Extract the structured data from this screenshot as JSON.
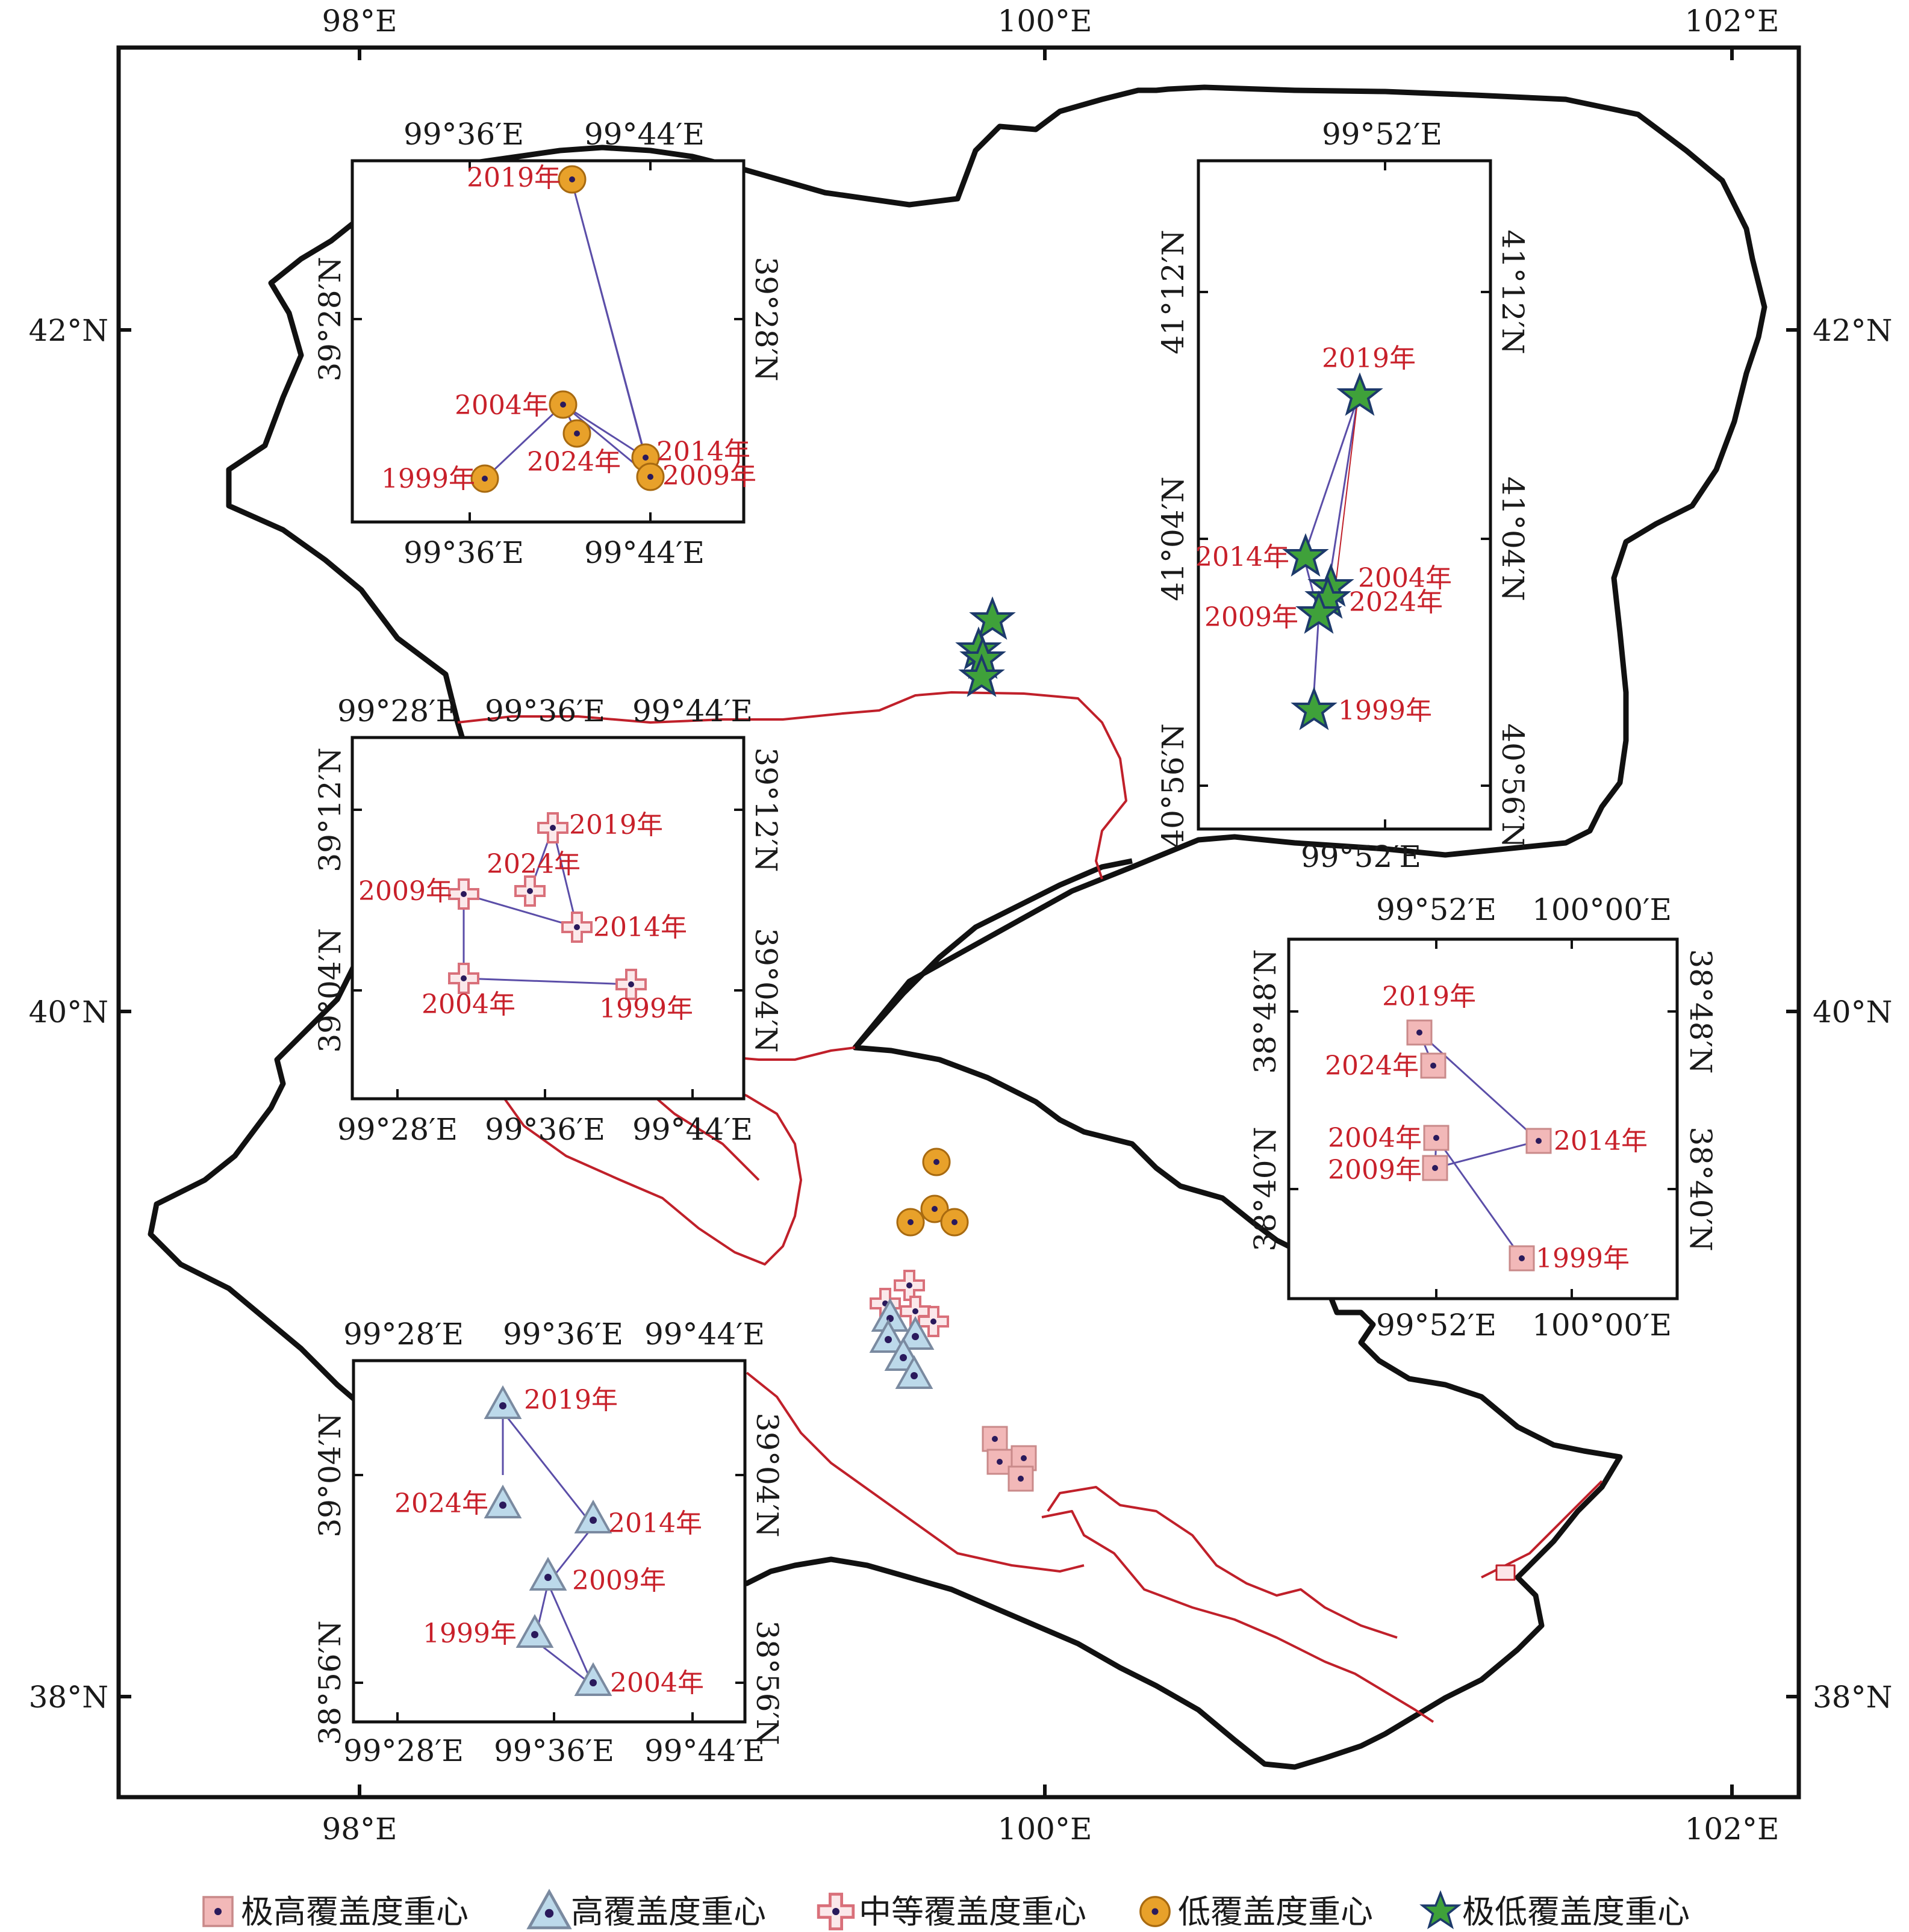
{
  "colors": {
    "frame": "#111111",
    "boundary": "#111111",
    "river": "#c0202a",
    "year_text": "#c8202a",
    "track": "#5b4ea8",
    "extreme_high_fill": "#f2b8b8",
    "high_fill": "#bcd9ea",
    "medium_stroke": "#d9707a",
    "low_fill": "#e8a12a",
    "extreme_low_fill": "#3fa13a"
  },
  "main_axes": {
    "x_ticks": [
      "98°E",
      "100°E",
      "102°E"
    ],
    "y_ticks": [
      "42°N",
      "40°N",
      "38°N"
    ]
  },
  "main_markers": {
    "extreme_low": {
      "icon": "green-star",
      "count": 4
    },
    "low": {
      "icon": "orange-circle",
      "count": 4
    },
    "medium": {
      "icon": "pink-cross",
      "count": 4
    },
    "high": {
      "icon": "blue-triangle",
      "count": 5
    },
    "extreme_high": {
      "icon": "pink-square",
      "count": 4
    }
  },
  "insets": {
    "low": {
      "x_ticks_top": [
        "99°36′E",
        "99°44′E"
      ],
      "x_ticks_bottom": [
        "99°36′E",
        "99°44′E"
      ],
      "y_ticks": [
        "39°28′N"
      ],
      "points": [
        {
          "year": "2019年"
        },
        {
          "year": "2004年"
        },
        {
          "year": "2024年"
        },
        {
          "year": "1999年"
        },
        {
          "year": "2014年"
        },
        {
          "year": "2009年"
        }
      ]
    },
    "extreme_low": {
      "x_ticks_top": [
        "99°52′E"
      ],
      "x_ticks_bottom": [
        "99°52′E"
      ],
      "y_ticks": [
        "41°12′N",
        "41°04′N",
        "40°56′N"
      ],
      "points": [
        {
          "year": "2019年"
        },
        {
          "year": "2014年"
        },
        {
          "year": "2004年"
        },
        {
          "year": "2024年"
        },
        {
          "year": "2009年"
        },
        {
          "year": "1999年"
        }
      ]
    },
    "medium": {
      "x_ticks_top": [
        "99°28′E",
        "99°36′E",
        "99°44′E"
      ],
      "x_ticks_bottom": [
        "99°28′E",
        "99°36′E",
        "99°44′E"
      ],
      "y_ticks": [
        "39°12′N",
        "39°04′N"
      ],
      "points": [
        {
          "year": "2019年"
        },
        {
          "year": "2024年"
        },
        {
          "year": "2009年"
        },
        {
          "year": "2014年"
        },
        {
          "year": "2004年"
        },
        {
          "year": "1999年"
        }
      ]
    },
    "extreme_high": {
      "x_ticks_top": [
        "99°52′E",
        "100°00′E"
      ],
      "x_ticks_bottom": [
        "99°52′E",
        "100°00′E"
      ],
      "y_ticks": [
        "38°48′N",
        "38°40′N"
      ],
      "points": [
        {
          "year": "2019年"
        },
        {
          "year": "2024年"
        },
        {
          "year": "2004年"
        },
        {
          "year": "2014年"
        },
        {
          "year": "2009年"
        },
        {
          "year": "1999年"
        }
      ]
    },
    "high": {
      "x_ticks_top": [
        "99°28′E",
        "99°36′E",
        "99°44′E"
      ],
      "x_ticks_bottom": [
        "99°28′E",
        "99°36′E",
        "99°44′E"
      ],
      "y_ticks": [
        "39°04′N",
        "38°56′N"
      ],
      "points": [
        {
          "year": "2019年"
        },
        {
          "year": "2024年"
        },
        {
          "year": "2014年"
        },
        {
          "year": "2009年"
        },
        {
          "year": "1999年"
        },
        {
          "year": "2004年"
        }
      ]
    }
  },
  "legend": [
    {
      "icon": "pink-square-icon",
      "label": "极高覆盖度重心"
    },
    {
      "icon": "blue-triangle-icon",
      "label": "高覆盖度重心"
    },
    {
      "icon": "pink-cross-icon",
      "label": "中等覆盖度重心"
    },
    {
      "icon": "orange-circle-icon",
      "label": "低覆盖度重心"
    },
    {
      "icon": "green-star-icon",
      "label": "极低覆盖度重心"
    }
  ]
}
